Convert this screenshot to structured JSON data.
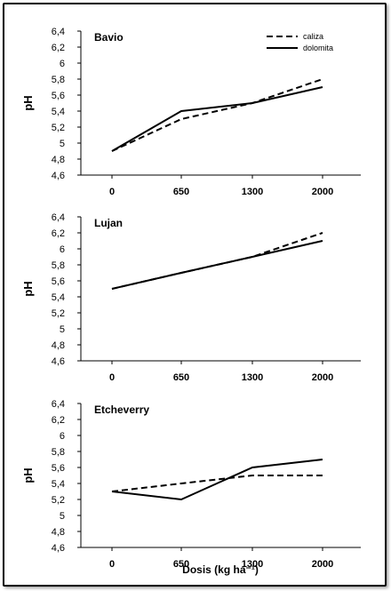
{
  "chart_data": [
    {
      "type": "line",
      "title": "Bavio",
      "categories": [
        "0",
        "650",
        "1300",
        "2000"
      ],
      "ylabel": "pH",
      "xlabel": "",
      "ylim": [
        4.6,
        6.4
      ],
      "yticks": [
        "4,6",
        "4,8",
        "5",
        "5,2",
        "5,4",
        "5,6",
        "5,8",
        "6",
        "6,2",
        "6,4"
      ],
      "legend": "top-right",
      "series": [
        {
          "name": "caliza",
          "style": "dashed",
          "values": [
            4.9,
            5.3,
            5.5,
            5.8
          ]
        },
        {
          "name": "dolomita",
          "style": "solid",
          "values": [
            4.9,
            5.4,
            5.5,
            5.7
          ]
        }
      ]
    },
    {
      "type": "line",
      "title": "Lujan",
      "categories": [
        "0",
        "650",
        "1300",
        "2000"
      ],
      "ylabel": "pH",
      "xlabel": "",
      "ylim": [
        4.6,
        6.4
      ],
      "yticks": [
        "4,6",
        "4,8",
        "5",
        "5,2",
        "5,4",
        "5,6",
        "5,8",
        "6",
        "6,2",
        "6,4"
      ],
      "series": [
        {
          "style": "dashed",
          "values": [
            5.5,
            5.7,
            5.9,
            6.2
          ]
        },
        {
          "style": "solid",
          "values": [
            5.5,
            5.7,
            5.9,
            6.1
          ]
        }
      ]
    },
    {
      "type": "line",
      "title": "Etcheverry",
      "categories": [
        "0",
        "650",
        "1300",
        "2000"
      ],
      "ylabel": "pH",
      "xlabel": "Dosis (kg ha⁻¹)",
      "ylim": [
        4.6,
        6.4
      ],
      "yticks": [
        "4,6",
        "4,8",
        "5",
        "5,2",
        "5,4",
        "5,6",
        "5,8",
        "6",
        "6,2",
        "6,4"
      ],
      "series": [
        {
          "style": "dashed",
          "values": [
            5.3,
            5.4,
            5.5,
            5.5
          ]
        },
        {
          "style": "solid",
          "values": [
            5.3,
            5.2,
            5.6,
            5.7
          ]
        }
      ]
    }
  ]
}
